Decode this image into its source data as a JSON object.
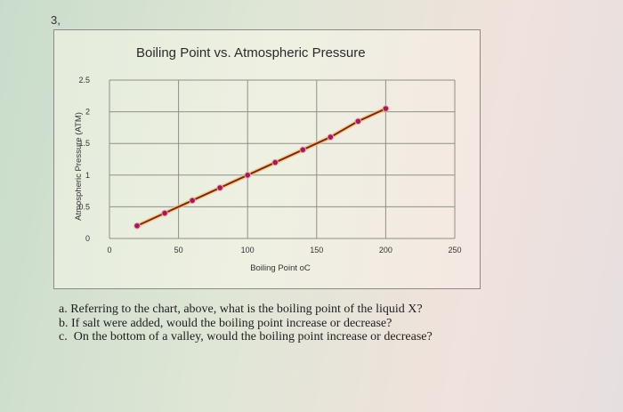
{
  "question_number": "3,",
  "chart_data": {
    "type": "line",
    "title": "Boiling Point vs. Atmospheric Pressure",
    "xlabel": "Boiling Point oC",
    "ylabel": "Atmospheric Pressure (ATM)",
    "xlim": [
      0,
      250
    ],
    "ylim": [
      0,
      2.5
    ],
    "x_ticks": [
      "0",
      "50",
      "100",
      "150",
      "200",
      "250"
    ],
    "y_ticks": [
      "0",
      "0.5",
      "1",
      "1.5",
      "2",
      "2.5"
    ],
    "grid": true,
    "legend": "none",
    "series": [
      {
        "name": "Boiling Point vs. Atmospheric Pressure",
        "line_color": "#7a2a12",
        "marker_color": "#9c1c5c",
        "points": [
          {
            "x": 20,
            "y": 0.2
          },
          {
            "x": 40,
            "y": 0.4
          },
          {
            "x": 60,
            "y": 0.6
          },
          {
            "x": 80,
            "y": 0.8
          },
          {
            "x": 100,
            "y": 1.0
          },
          {
            "x": 120,
            "y": 1.2
          },
          {
            "x": 140,
            "y": 1.4
          },
          {
            "x": 160,
            "y": 1.6
          },
          {
            "x": 180,
            "y": 1.85
          },
          {
            "x": 200,
            "y": 2.05
          }
        ]
      }
    ]
  },
  "questions": [
    {
      "label": "a.",
      "text": "Referring to the chart, above, what is the boiling point of the liquid X?"
    },
    {
      "label": "b.",
      "text": "If salt were added, would the boiling point increase or decrease?"
    },
    {
      "label": "c.",
      "text": "On the bottom of a valley, would the boiling point increase or decrease?"
    }
  ]
}
